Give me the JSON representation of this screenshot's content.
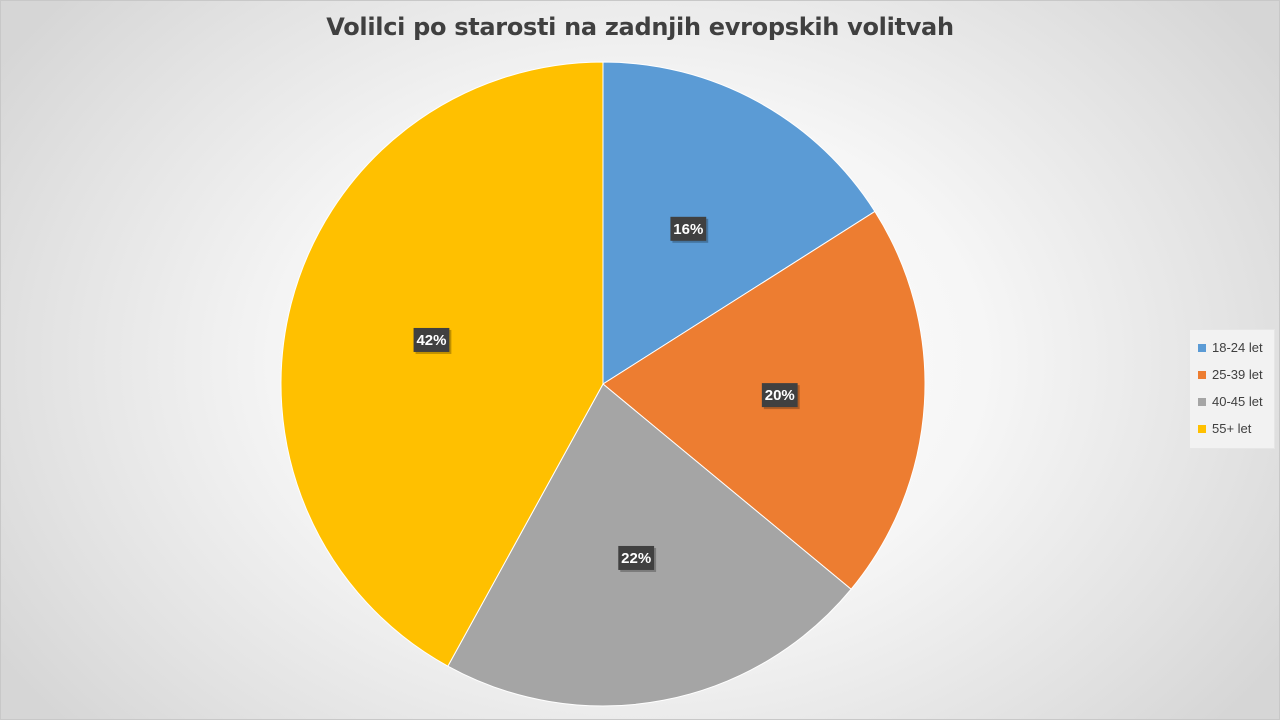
{
  "chart_data": {
    "type": "pie",
    "title": "Volilci po starosti na zadnjih evropskih volitvah",
    "categories": [
      "18-24 let",
      "25-39 let",
      "40-45 let",
      "55+ let"
    ],
    "values": [
      16,
      20,
      22,
      42
    ],
    "labels": [
      "16%",
      "20%",
      "22%",
      "42%"
    ],
    "colors": [
      "#5B9BD5",
      "#ED7D31",
      "#A5A5A5",
      "#FFC000"
    ],
    "legend_position": "right",
    "start_angle": "top",
    "direction": "clockwise"
  },
  "legend": {
    "items": [
      {
        "label": "18-24 let",
        "color": "#5B9BD5"
      },
      {
        "label": "25-39 let",
        "color": "#ED7D31"
      },
      {
        "label": "40-45 let",
        "color": "#A5A5A5"
      },
      {
        "label": "55+ let",
        "color": "#FFC000"
      }
    ]
  }
}
